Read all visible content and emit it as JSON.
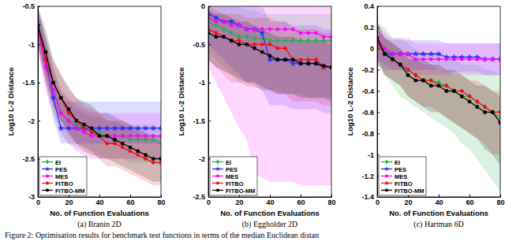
{
  "chart_data": [
    {
      "type": "line",
      "title": "(a) Branin 2D",
      "xlabel": "No. of Function Evaluations",
      "ylabel": "Log10 L-2 Distance",
      "x": [
        0,
        5,
        10,
        15,
        20,
        25,
        30,
        35,
        40,
        45,
        50,
        55,
        60,
        65,
        70,
        75,
        80
      ],
      "xlim": [
        0,
        80
      ],
      "xticks": [
        0,
        20,
        40,
        60,
        80
      ],
      "ylim": [
        -3,
        -0.5
      ],
      "yticks": [
        -3,
        -2.5,
        -2,
        -1.5,
        -1,
        -0.5
      ],
      "legend": "lower left",
      "series": [
        {
          "name": "EI",
          "color": "#22b14c",
          "marker": "diamond",
          "values": [
            -0.7,
            -1.2,
            -1.6,
            -1.9,
            -2.0,
            -2.05,
            -2.1,
            -2.15,
            -2.15,
            -2.2,
            -2.2,
            -2.2,
            -2.25,
            -2.25,
            -2.25,
            -2.25,
            -2.3
          ],
          "lower": [
            -1.0,
            -1.5,
            -1.9,
            -2.15,
            -2.3,
            -2.35,
            -2.4,
            -2.45,
            -2.45,
            -2.5,
            -2.5,
            -2.5,
            -2.55,
            -2.55,
            -2.55,
            -2.55,
            -2.6
          ],
          "upper": [
            -0.5,
            -0.9,
            -1.3,
            -1.6,
            -1.75,
            -1.85,
            -1.9,
            -1.95,
            -1.95,
            -2.0,
            -2.0,
            -2.0,
            -2.05,
            -2.05,
            -2.05,
            -2.05,
            -2.1
          ]
        },
        {
          "name": "PES",
          "color": "#2b2bff",
          "marker": "star",
          "values": [
            -0.75,
            -1.2,
            -1.7,
            -2.1,
            -2.1,
            -2.1,
            -2.1,
            -2.1,
            -2.1,
            -2.1,
            -2.1,
            -2.1,
            -2.1,
            -2.1,
            -2.1,
            -2.1,
            -2.1
          ],
          "lower": [
            -1.0,
            -1.5,
            -2.0,
            -2.3,
            -2.3,
            -2.3,
            -2.3,
            -2.3,
            -2.3,
            -2.3,
            -2.3,
            -2.3,
            -2.3,
            -2.3,
            -2.3,
            -2.3,
            -2.3
          ],
          "upper": [
            -0.55,
            -0.9,
            -1.4,
            -1.75,
            -1.75,
            -1.75,
            -1.75,
            -1.75,
            -1.75,
            -1.75,
            -1.75,
            -1.75,
            -1.75,
            -1.75,
            -1.75,
            -1.75,
            -1.75
          ]
        },
        {
          "name": "MES",
          "color": "#ff00ff",
          "marker": "circle",
          "values": [
            -0.8,
            -1.3,
            -1.6,
            -1.9,
            -2.0,
            -2.1,
            -2.15,
            -2.2,
            -2.2,
            -2.2,
            -2.2,
            -2.2,
            -2.2,
            -2.2,
            -2.2,
            -2.2,
            -2.2
          ],
          "lower": [
            -1.05,
            -1.6,
            -1.9,
            -2.2,
            -2.3,
            -2.4,
            -2.45,
            -2.5,
            -2.5,
            -2.5,
            -2.5,
            -2.5,
            -2.5,
            -2.5,
            -2.5,
            -2.5,
            -2.5
          ],
          "upper": [
            -0.55,
            -1.0,
            -1.3,
            -1.6,
            -1.7,
            -1.8,
            -1.85,
            -1.9,
            -1.9,
            -1.9,
            -1.9,
            -1.9,
            -1.9,
            -1.9,
            -1.9,
            -1.9,
            -1.9
          ]
        },
        {
          "name": "FITBO",
          "color": "#ee1111",
          "marker": "circle",
          "values": [
            -0.8,
            -1.2,
            -1.5,
            -1.7,
            -1.9,
            -2.0,
            -2.1,
            -2.15,
            -2.2,
            -2.3,
            -2.3,
            -2.35,
            -2.4,
            -2.45,
            -2.5,
            -2.55,
            -2.55
          ],
          "lower": [
            -1.1,
            -1.5,
            -1.8,
            -2.0,
            -2.2,
            -2.3,
            -2.4,
            -2.45,
            -2.5,
            -2.6,
            -2.6,
            -2.65,
            -2.7,
            -2.75,
            -2.8,
            -2.85,
            -2.85
          ],
          "upper": [
            -0.55,
            -0.9,
            -1.2,
            -1.4,
            -1.6,
            -1.7,
            -1.8,
            -1.85,
            -1.9,
            -2.0,
            -2.0,
            -2.05,
            -2.1,
            -2.15,
            -2.2,
            -2.25,
            -2.25
          ]
        },
        {
          "name": "FITBO-MM",
          "color": "#000000",
          "marker": "square",
          "values": [
            -0.75,
            -1.1,
            -1.5,
            -1.7,
            -1.85,
            -2.0,
            -2.05,
            -2.1,
            -2.2,
            -2.2,
            -2.25,
            -2.3,
            -2.35,
            -2.4,
            -2.45,
            -2.5,
            -2.5
          ],
          "lower": [
            -1.0,
            -1.4,
            -1.8,
            -2.0,
            -2.15,
            -2.3,
            -2.35,
            -2.4,
            -2.5,
            -2.5,
            -2.55,
            -2.6,
            -2.65,
            -2.7,
            -2.75,
            -2.8,
            -2.8
          ],
          "upper": [
            -0.5,
            -0.8,
            -1.2,
            -1.4,
            -1.55,
            -1.7,
            -1.75,
            -1.8,
            -1.9,
            -1.9,
            -1.95,
            -2.0,
            -2.05,
            -2.1,
            -2.15,
            -2.2,
            -2.2
          ]
        }
      ]
    },
    {
      "type": "line",
      "title": "(b) Eggholder 2D",
      "xlabel": "No. of Function Evaluations",
      "ylabel": "Log10 L-2 Distance",
      "x": [
        0,
        5,
        10,
        15,
        20,
        25,
        30,
        35,
        40,
        45,
        50,
        55,
        60,
        65,
        70,
        75,
        80
      ],
      "xlim": [
        0,
        80
      ],
      "xticks": [
        0,
        20,
        40,
        60,
        80
      ],
      "ylim": [
        -2.5,
        0
      ],
      "yticks": [
        -2.5,
        -2,
        -1.5,
        -1,
        -0.5,
        0
      ],
      "legend": "lower left",
      "series": [
        {
          "name": "EI",
          "color": "#22b14c",
          "marker": "diamond",
          "values": [
            -0.2,
            -0.25,
            -0.3,
            -0.35,
            -0.4,
            -0.4,
            -0.42,
            -0.42,
            -0.45,
            -0.45,
            -0.45,
            -0.45,
            -0.45,
            -0.45,
            -0.45,
            -0.45,
            -0.45
          ],
          "lower": [
            -0.6,
            -0.7,
            -0.8,
            -0.9,
            -1.0,
            -1.0,
            -1.05,
            -1.1,
            -1.1,
            -1.1,
            -1.15,
            -1.15,
            -1.15,
            -1.2,
            -1.2,
            -1.2,
            -1.2
          ],
          "upper": [
            0,
            0,
            0,
            0,
            0,
            -0.05,
            -0.05,
            -0.1,
            -0.1,
            -0.1,
            -0.1,
            -0.1,
            -0.1,
            -0.1,
            -0.1,
            -0.1,
            -0.1
          ]
        },
        {
          "name": "PES",
          "color": "#2b2bff",
          "marker": "star",
          "values": [
            -0.1,
            -0.15,
            -0.2,
            -0.2,
            -0.25,
            -0.3,
            -0.3,
            -0.35,
            -0.7,
            -0.7,
            -0.7,
            -0.75,
            -0.75,
            -0.75,
            -0.75,
            -0.8,
            -0.8
          ],
          "lower": [
            -0.5,
            -0.6,
            -0.7,
            -0.8,
            -0.9,
            -1.0,
            -1.0,
            -1.1,
            -1.3,
            -1.3,
            -1.3,
            -1.35,
            -1.35,
            -1.35,
            -1.35,
            -1.4,
            -1.4
          ],
          "upper": [
            0.1,
            0.1,
            0.1,
            0.1,
            0.05,
            0,
            0,
            0,
            -0.2,
            -0.2,
            -0.2,
            -0.25,
            -0.25,
            -0.25,
            -0.25,
            -0.3,
            -0.3
          ]
        },
        {
          "name": "MES",
          "color": "#ff00ff",
          "marker": "circle",
          "values": [
            -0.15,
            -0.2,
            -0.2,
            -0.25,
            -0.25,
            -0.3,
            -0.3,
            -0.3,
            -0.3,
            -0.3,
            -0.3,
            -0.3,
            -0.35,
            -0.35,
            -0.35,
            -0.4,
            -0.4
          ],
          "lower": [
            -0.8,
            -1.0,
            -1.2,
            -1.4,
            -1.6,
            -1.75,
            -2.2,
            -2.25,
            -2.3,
            -2.3,
            -2.3,
            -2.3,
            -2.35,
            -2.35,
            -2.35,
            -2.35,
            -2.35
          ],
          "upper": [
            0.1,
            0.1,
            0.1,
            0.1,
            0.1,
            0.05,
            0.05,
            0.05,
            0.05,
            0.05,
            0.05,
            0.05,
            0,
            0,
            0,
            0,
            0
          ]
        },
        {
          "name": "FITBO",
          "color": "#ee1111",
          "marker": "circle",
          "values": [
            -0.3,
            -0.35,
            -0.4,
            -0.45,
            -0.45,
            -0.5,
            -0.5,
            -0.5,
            -0.5,
            -0.55,
            -0.55,
            -0.7,
            -0.7,
            -0.7,
            -0.7,
            -0.8,
            -0.8
          ],
          "lower": [
            -0.7,
            -0.8,
            -0.9,
            -1.0,
            -1.0,
            -1.05,
            -1.05,
            -1.1,
            -1.1,
            -1.15,
            -1.15,
            -1.25,
            -1.25,
            -1.25,
            -1.25,
            -1.3,
            -1.3
          ],
          "upper": [
            0,
            -0.05,
            -0.1,
            -0.1,
            -0.1,
            -0.15,
            -0.15,
            -0.15,
            -0.15,
            -0.2,
            -0.2,
            -0.3,
            -0.3,
            -0.3,
            -0.3,
            -0.35,
            -0.35
          ]
        },
        {
          "name": "FITBO-MM",
          "color": "#000000",
          "marker": "square",
          "values": [
            -0.35,
            -0.4,
            -0.4,
            -0.45,
            -0.5,
            -0.5,
            -0.55,
            -0.6,
            -0.65,
            -0.7,
            -0.7,
            -0.7,
            -0.75,
            -0.75,
            -0.75,
            -0.78,
            -0.8
          ],
          "lower": [
            -0.7,
            -0.8,
            -0.85,
            -0.9,
            -0.95,
            -1.0,
            -1.0,
            -1.05,
            -1.1,
            -1.15,
            -1.15,
            -1.15,
            -1.2,
            -1.2,
            -1.2,
            -1.2,
            -1.25
          ],
          "upper": [
            -0.05,
            -0.1,
            -0.1,
            -0.15,
            -0.2,
            -0.2,
            -0.25,
            -0.3,
            -0.35,
            -0.4,
            -0.4,
            -0.4,
            -0.45,
            -0.45,
            -0.45,
            -0.45,
            -0.5
          ]
        }
      ]
    },
    {
      "type": "line",
      "title": "(c) Hartman 6D",
      "xlabel": "No. of Function Evaluations",
      "ylabel": "Log10 L-2 Distance",
      "x": [
        0,
        5,
        10,
        15,
        20,
        25,
        30,
        35,
        40,
        45,
        50,
        55,
        60,
        65,
        70,
        75,
        80
      ],
      "xlim": [
        0,
        80
      ],
      "xticks": [
        0,
        20,
        40,
        60,
        80
      ],
      "ylim": [
        -1.4,
        0.4
      ],
      "yticks": [
        -1.4,
        -1.2,
        -1,
        -0.8,
        -0.6,
        -0.4,
        -0.2,
        0,
        0.2,
        0.4
      ],
      "legend": "lower left",
      "series": [
        {
          "name": "EI",
          "color": "#22b14c",
          "marker": "diamond",
          "values": [
            0.1,
            0,
            -0.1,
            -0.15,
            -0.2,
            -0.25,
            -0.3,
            -0.3,
            -0.32,
            -0.35,
            -0.4,
            -0.45,
            -0.45,
            -0.5,
            -0.55,
            -0.6,
            -0.65
          ],
          "lower": [
            -0.1,
            -0.25,
            -0.35,
            -0.45,
            -0.5,
            -0.55,
            -0.6,
            -0.65,
            -0.7,
            -0.75,
            -0.8,
            -0.9,
            -0.95,
            -1.05,
            -1.15,
            -1.25,
            -1.35
          ],
          "upper": [
            0.25,
            0.2,
            0.1,
            0.1,
            0.05,
            0,
            -0.05,
            -0.05,
            -0.05,
            -0.1,
            -0.1,
            -0.15,
            -0.15,
            -0.15,
            -0.2,
            -0.2,
            -0.25
          ]
        },
        {
          "name": "PES",
          "color": "#2b2bff",
          "marker": "star",
          "values": [
            0.05,
            -0.05,
            -0.05,
            -0.05,
            -0.05,
            -0.05,
            -0.05,
            -0.05,
            -0.05,
            -0.08,
            -0.08,
            -0.08,
            -0.08,
            -0.08,
            -0.1,
            -0.1,
            -0.1
          ],
          "lower": [
            -0.15,
            -0.2,
            -0.2,
            -0.2,
            -0.2,
            -0.2,
            -0.2,
            -0.2,
            -0.2,
            -0.22,
            -0.22,
            -0.22,
            -0.22,
            -0.22,
            -0.25,
            -0.25,
            -0.25
          ],
          "upper": [
            0.2,
            0.1,
            0.08,
            0.08,
            0.08,
            0.08,
            0.08,
            0.08,
            0.08,
            0.05,
            0.05,
            0.05,
            0.05,
            0.05,
            0.05,
            0.05,
            0.05
          ]
        },
        {
          "name": "MES",
          "color": "#ff00ff",
          "marker": "circle",
          "values": [
            0.1,
            0,
            -0.05,
            -0.05,
            -0.05,
            -0.1,
            -0.1,
            -0.1,
            -0.1,
            -0.1,
            -0.1,
            -0.1,
            -0.1,
            -0.1,
            -0.1,
            -0.1,
            -0.1
          ],
          "lower": [
            -0.1,
            -0.15,
            -0.2,
            -0.2,
            -0.2,
            -0.25,
            -0.25,
            -0.25,
            -0.25,
            -0.25,
            -0.25,
            -0.25,
            -0.25,
            -0.25,
            -0.25,
            -0.25,
            -0.25
          ],
          "upper": [
            0.25,
            0.15,
            0.1,
            0.1,
            0.1,
            0.05,
            0.05,
            0.05,
            0.05,
            0.05,
            0.05,
            0.05,
            0.05,
            0.05,
            0.05,
            0.05,
            0.05
          ]
        },
        {
          "name": "FITBO",
          "color": "#ee1111",
          "marker": "circle",
          "values": [
            0.05,
            -0.05,
            -0.1,
            -0.15,
            -0.2,
            -0.25,
            -0.3,
            -0.3,
            -0.35,
            -0.35,
            -0.4,
            -0.4,
            -0.45,
            -0.5,
            -0.55,
            -0.6,
            -0.6
          ],
          "lower": [
            -0.15,
            -0.25,
            -0.3,
            -0.35,
            -0.45,
            -0.5,
            -0.55,
            -0.55,
            -0.6,
            -0.65,
            -0.7,
            -0.75,
            -0.8,
            -0.85,
            -0.9,
            -1.0,
            -1.0
          ],
          "upper": [
            0.2,
            0.1,
            0.05,
            0,
            -0.05,
            -0.1,
            -0.15,
            -0.15,
            -0.2,
            -0.2,
            -0.25,
            -0.25,
            -0.3,
            -0.3,
            -0.35,
            -0.4,
            -0.4
          ]
        },
        {
          "name": "FITBO-MM",
          "color": "#000000",
          "marker": "square",
          "values": [
            0.1,
            -0.05,
            -0.1,
            -0.15,
            -0.25,
            -0.3,
            -0.3,
            -0.35,
            -0.35,
            -0.4,
            -0.4,
            -0.45,
            -0.5,
            -0.55,
            -0.6,
            -0.6,
            -0.7
          ],
          "lower": [
            -0.1,
            -0.25,
            -0.3,
            -0.35,
            -0.45,
            -0.5,
            -0.55,
            -0.6,
            -0.6,
            -0.65,
            -0.7,
            -0.75,
            -0.8,
            -0.85,
            -0.95,
            -1.0,
            -1.1
          ],
          "upper": [
            0.25,
            0.1,
            0.05,
            0,
            -0.1,
            -0.1,
            -0.1,
            -0.15,
            -0.15,
            -0.2,
            -0.2,
            -0.25,
            -0.3,
            -0.35,
            -0.35,
            -0.4,
            -0.45
          ]
        }
      ]
    }
  ],
  "caption": "Figure 2: Optimisation results for benchmark test functions in terms of the median Euclidean distan"
}
